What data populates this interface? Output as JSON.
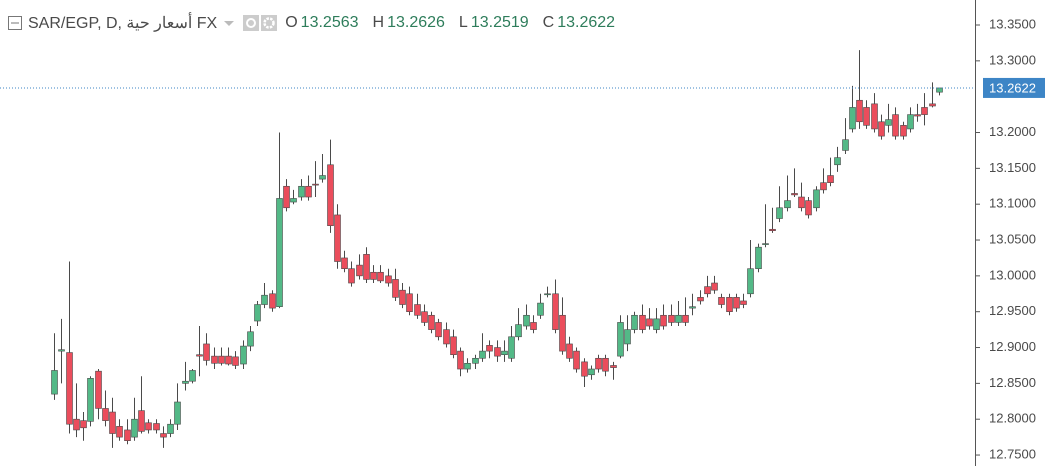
{
  "chart_data": {
    "type": "candlestick",
    "title": "SAR/EGP, D, أسعار حية FX",
    "legend_labels": {
      "open": "O",
      "high": "H",
      "low": "L",
      "close": "C"
    },
    "up_color": "#53b987",
    "down_color": "#eb4d5c",
    "wick_color": "#4a4a4a",
    "price_line_color": "#3d85c6",
    "ylim": [
      12.7347,
      13.3849
    ],
    "yticks": [
      {
        "value": 12.75,
        "label": "12.7500"
      },
      {
        "value": 12.8,
        "label": "12.8000"
      },
      {
        "value": 12.85,
        "label": "12.8500"
      },
      {
        "value": 12.9,
        "label": "12.9000"
      },
      {
        "value": 12.95,
        "label": "12.9500"
      },
      {
        "value": 13.0,
        "label": "13.0000"
      },
      {
        "value": 13.05,
        "label": "13.0500"
      },
      {
        "value": 13.1,
        "label": "13.1000"
      },
      {
        "value": 13.15,
        "label": "13.1500"
      },
      {
        "value": 13.2,
        "label": "13.2000"
      },
      {
        "value": 13.3,
        "label": "13.3000"
      },
      {
        "value": 13.35,
        "label": "13.3500"
      }
    ],
    "open": [
      12.835,
      12.895,
      12.893,
      12.8,
      12.798,
      12.797,
      12.867,
      12.815,
      12.81,
      12.79,
      12.785,
      12.775,
      12.812,
      12.795,
      12.794,
      12.78,
      12.78,
      12.793,
      12.85,
      12.853,
      12.89,
      12.905,
      12.888,
      12.888,
      12.888,
      12.887,
      12.877,
      12.902,
      12.937,
      12.96,
      12.975,
      12.957,
      13.125,
      13.103,
      13.11,
      13.125,
      13.128,
      13.135,
      13.155,
      13.085,
      13.025,
      13.01,
      13.015,
      13.03,
      13.005,
      13.005,
      13.0,
      12.995,
      12.98,
      12.975,
      12.96,
      12.95,
      12.945,
      12.935,
      12.925,
      12.915,
      12.895,
      12.87,
      12.878,
      12.885,
      12.903,
      12.9,
      12.89,
      12.885,
      12.915,
      12.93,
      12.935,
      12.945,
      12.975,
      12.975,
      12.945,
      12.905,
      12.895,
      12.88,
      12.862,
      12.885,
      12.885,
      12.875,
      12.888,
      12.905,
      12.925,
      12.945,
      12.94,
      12.925,
      12.945,
      12.945,
      12.935,
      12.945,
      12.955,
      12.97,
      12.985,
      12.99,
      12.97,
      12.97,
      12.97,
      12.965,
      12.975,
      13.01,
      13.045,
      13.065,
      13.08,
      13.095,
      13.115,
      13.11,
      13.105,
      13.095,
      13.13,
      13.14,
      13.155,
      13.175,
      13.205,
      13.245,
      13.235,
      13.24,
      13.215,
      13.21,
      13.225,
      13.21,
      13.205,
      13.225,
      13.235,
      13.24,
      13.2563
    ],
    "high": [
      12.92,
      12.94,
      13.02,
      12.85,
      12.81,
      12.86,
      12.87,
      12.84,
      12.83,
      12.8,
      12.8,
      12.83,
      12.86,
      12.8,
      12.8,
      12.79,
      12.8,
      12.85,
      12.88,
      12.87,
      12.93,
      12.92,
      12.9,
      12.9,
      12.9,
      12.895,
      12.91,
      12.93,
      12.965,
      12.99,
      12.98,
      13.2,
      13.135,
      13.12,
      13.135,
      13.14,
      13.16,
      13.17,
      13.19,
      13.1,
      13.035,
      13.02,
      13.03,
      13.04,
      13.015,
      13.015,
      13.01,
      13.01,
      12.99,
      12.985,
      12.975,
      12.96,
      12.95,
      12.94,
      12.935,
      12.925,
      12.9,
      12.885,
      12.89,
      12.92,
      12.91,
      12.91,
      12.91,
      12.93,
      12.955,
      12.96,
      12.945,
      12.975,
      12.985,
      12.995,
      12.97,
      12.915,
      12.9,
      12.885,
      12.875,
      12.89,
      12.89,
      12.88,
      12.945,
      12.945,
      12.95,
      12.96,
      12.955,
      12.955,
      12.96,
      12.96,
      12.965,
      12.97,
      12.975,
      12.98,
      13.0,
      13.0,
      12.975,
      12.975,
      12.975,
      12.975,
      13.05,
      13.045,
      13.1,
      13.095,
      13.125,
      13.14,
      13.15,
      13.13,
      13.11,
      13.125,
      13.15,
      13.165,
      13.18,
      13.22,
      13.265,
      13.315,
      13.245,
      13.255,
      13.225,
      13.24,
      13.235,
      13.215,
      13.235,
      13.24,
      13.255,
      13.27,
      13.2626
    ],
    "low": [
      12.827,
      12.85,
      12.78,
      12.775,
      12.77,
      12.79,
      12.8,
      12.79,
      12.76,
      12.77,
      12.765,
      12.77,
      12.78,
      12.78,
      12.78,
      12.76,
      12.775,
      12.785,
      12.84,
      12.85,
      12.86,
      12.875,
      12.87,
      12.875,
      12.875,
      12.87,
      12.87,
      12.895,
      12.93,
      12.955,
      12.95,
      12.955,
      13.09,
      13.1,
      13.105,
      13.105,
      13.11,
      13.13,
      13.06,
      13.01,
      13.005,
      12.985,
      12.995,
      12.99,
      12.99,
      12.99,
      12.985,
      12.965,
      12.955,
      12.945,
      12.94,
      12.93,
      12.92,
      12.91,
      12.9,
      12.885,
      12.86,
      12.865,
      12.87,
      12.88,
      12.885,
      12.88,
      12.88,
      12.88,
      12.91,
      12.925,
      12.92,
      12.94,
      12.97,
      12.92,
      12.89,
      12.88,
      12.865,
      12.845,
      12.855,
      12.865,
      12.86,
      12.855,
      12.885,
      12.895,
      12.92,
      12.92,
      12.925,
      12.92,
      12.925,
      12.93,
      12.93,
      12.93,
      12.945,
      12.96,
      12.97,
      12.975,
      12.955,
      12.945,
      12.95,
      12.955,
      12.97,
      13.005,
      13.04,
      13.06,
      13.075,
      13.09,
      13.11,
      13.09,
      13.08,
      13.09,
      13.115,
      13.125,
      13.145,
      13.17,
      13.2,
      13.205,
      13.205,
      13.2,
      13.19,
      13.2,
      13.19,
      13.19,
      13.2,
      13.215,
      13.21,
      13.235,
      13.2519
    ],
    "close": [
      12.868,
      12.897,
      12.793,
      12.785,
      12.788,
      12.857,
      12.815,
      12.798,
      12.78,
      12.775,
      12.77,
      12.8,
      12.783,
      12.785,
      12.785,
      12.775,
      12.793,
      12.824,
      12.853,
      12.868,
      12.888,
      12.882,
      12.878,
      12.878,
      12.877,
      12.875,
      12.902,
      12.922,
      12.96,
      12.973,
      12.955,
      13.108,
      13.095,
      13.108,
      13.125,
      13.11,
      13.127,
      13.14,
      13.07,
      13.02,
      13.01,
      12.99,
      13.0,
      12.995,
      12.995,
      12.993,
      12.99,
      12.97,
      12.96,
      12.95,
      12.945,
      12.935,
      12.925,
      12.915,
      12.905,
      12.89,
      12.87,
      12.878,
      12.885,
      12.895,
      12.895,
      12.888,
      12.895,
      12.915,
      12.932,
      12.945,
      12.925,
      12.962,
      12.975,
      12.925,
      12.895,
      12.885,
      12.87,
      12.86,
      12.87,
      12.87,
      12.867,
      12.872,
      12.935,
      12.925,
      12.945,
      12.925,
      12.93,
      12.94,
      12.93,
      12.935,
      12.945,
      12.935,
      12.957,
      12.965,
      12.975,
      12.98,
      12.96,
      12.95,
      12.955,
      12.96,
      13.01,
      13.04,
      13.045,
      13.063,
      13.095,
      13.105,
      13.113,
      13.095,
      13.085,
      13.12,
      13.12,
      13.13,
      13.165,
      13.19,
      13.235,
      13.215,
      13.21,
      13.205,
      13.195,
      13.218,
      13.195,
      13.195,
      13.225,
      13.223,
      13.225,
      13.237,
      13.2622
    ]
  }
}
